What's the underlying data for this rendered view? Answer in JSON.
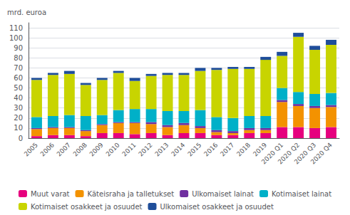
{
  "chart_data": {
    "type": "bar",
    "stacked": true,
    "grid": true,
    "ylabel": "mrd. euroa",
    "categories": [
      "2005",
      "2006",
      "2007",
      "2008",
      "2009",
      "2010",
      "2011",
      "2012",
      "2013",
      "2014",
      "2015",
      "2016",
      "2017",
      "2018",
      "2019",
      "2020 Q1",
      "2020 Q2",
      "2020 Q3",
      "2020 Q4"
    ],
    "series": [
      {
        "name": "Muut varat",
        "color": "#e6007e",
        "values": [
          2,
          3,
          3,
          2,
          5,
          5,
          4,
          5,
          3,
          5,
          5,
          3,
          3,
          5,
          5,
          11,
          11,
          10,
          11
        ]
      },
      {
        "name": "Käteisraha ja talletukset",
        "color": "#f39200",
        "values": [
          7,
          7,
          7,
          5,
          8,
          10,
          11,
          9,
          8,
          8,
          5,
          3,
          2,
          3,
          3,
          25,
          21,
          20,
          20
        ]
      },
      {
        "name": "Ulkomaiset lainat",
        "color": "#7030a0",
        "values": [
          1,
          1,
          1,
          1,
          1,
          1,
          1,
          2,
          2,
          2,
          2,
          2,
          2,
          2,
          2,
          2,
          2,
          2,
          2
        ]
      },
      {
        "name": "Kotimaiset lainat",
        "color": "#00b0c8",
        "values": [
          11,
          11,
          12,
          14,
          9,
          12,
          13,
          13,
          14,
          12,
          16,
          13,
          13,
          12,
          12,
          12,
          12,
          12,
          12
        ]
      },
      {
        "name": "Kotimaiset osakkeet ja osuudet",
        "color": "#c8d400",
        "values": [
          37,
          41,
          41,
          31,
          35,
          37,
          28,
          33,
          36,
          36,
          39,
          47,
          49,
          47,
          56,
          32,
          55,
          44,
          48
        ]
      },
      {
        "name": "Ulkomaiset osakkeet ja osuudet",
        "color": "#1f4e9a",
        "values": [
          2,
          2,
          3,
          2,
          2,
          2,
          3,
          2,
          2,
          2,
          3,
          2,
          2,
          2,
          3,
          4,
          4,
          4,
          5
        ]
      }
    ],
    "ylim": [
      0,
      115
    ],
    "yticks": [
      0,
      10,
      20,
      30,
      40,
      50,
      60,
      70,
      80,
      90,
      100,
      110
    ]
  }
}
